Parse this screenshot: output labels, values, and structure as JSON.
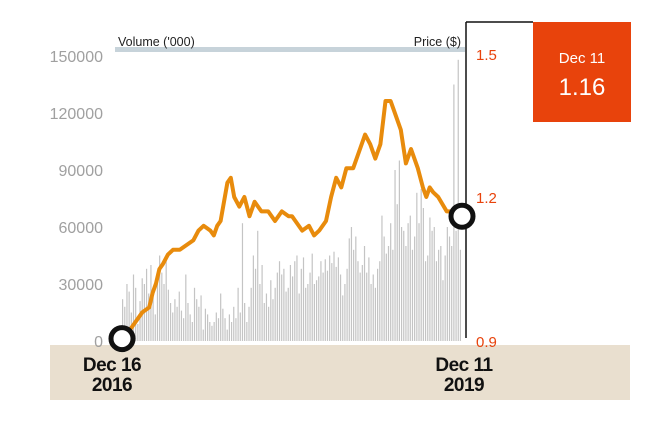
{
  "chart_data": {
    "type": "bar+line",
    "volume_label": "Volume ('000)",
    "price_label": "Price ($)",
    "y_left_ticks": [
      "150000",
      "120000",
      "90000",
      "60000",
      "30000",
      "0"
    ],
    "y_left_range": [
      0,
      150000
    ],
    "y_right_ticks": [
      "1.5",
      "1.2",
      "0.9"
    ],
    "y_right_range": [
      0.9,
      1.5
    ],
    "x_start_label": [
      "Dec 16",
      "2016"
    ],
    "x_end_label": [
      "Dec 11",
      "2019"
    ],
    "callout": {
      "date": "Dec 11",
      "value": "1.16"
    },
    "colors": {
      "price_line": "#e88b0c",
      "volume_bars": "#c4c4c4",
      "accent": "#e8430c",
      "axis_band": "#e9dfcf",
      "right_axis_text": "#e8430c",
      "left_axis_text": "#a0a0a0"
    },
    "price_series": {
      "name": "Price",
      "points": [
        [
          0.0,
          0.905
        ],
        [
          0.02,
          0.92
        ],
        [
          0.04,
          0.94
        ],
        [
          0.06,
          0.96
        ],
        [
          0.08,
          0.97
        ],
        [
          0.09,
          1.0
        ],
        [
          0.1,
          1.02
        ],
        [
          0.11,
          1.05
        ],
        [
          0.12,
          1.06
        ],
        [
          0.135,
          1.08
        ],
        [
          0.15,
          1.09
        ],
        [
          0.17,
          1.09
        ],
        [
          0.19,
          1.1
        ],
        [
          0.21,
          1.11
        ],
        [
          0.225,
          1.13
        ],
        [
          0.24,
          1.14
        ],
        [
          0.26,
          1.13
        ],
        [
          0.27,
          1.12
        ],
        [
          0.28,
          1.14
        ],
        [
          0.29,
          1.15
        ],
        [
          0.31,
          1.23
        ],
        [
          0.32,
          1.24
        ],
        [
          0.33,
          1.2
        ],
        [
          0.345,
          1.18
        ],
        [
          0.36,
          1.2
        ],
        [
          0.375,
          1.16
        ],
        [
          0.39,
          1.19
        ],
        [
          0.41,
          1.17
        ],
        [
          0.43,
          1.17
        ],
        [
          0.45,
          1.15
        ],
        [
          0.47,
          1.17
        ],
        [
          0.49,
          1.16
        ],
        [
          0.5,
          1.16
        ],
        [
          0.51,
          1.15
        ],
        [
          0.53,
          1.13
        ],
        [
          0.55,
          1.14
        ],
        [
          0.565,
          1.12
        ],
        [
          0.58,
          1.13
        ],
        [
          0.6,
          1.15
        ],
        [
          0.615,
          1.2
        ],
        [
          0.63,
          1.24
        ],
        [
          0.645,
          1.22
        ],
        [
          0.66,
          1.26
        ],
        [
          0.68,
          1.26
        ],
        [
          0.7,
          1.3
        ],
        [
          0.715,
          1.33
        ],
        [
          0.73,
          1.31
        ],
        [
          0.745,
          1.28
        ],
        [
          0.76,
          1.31
        ],
        [
          0.775,
          1.4
        ],
        [
          0.79,
          1.4
        ],
        [
          0.8,
          1.38
        ],
        [
          0.82,
          1.34
        ],
        [
          0.835,
          1.27
        ],
        [
          0.85,
          1.3
        ],
        [
          0.87,
          1.26
        ],
        [
          0.885,
          1.22
        ],
        [
          0.895,
          1.2
        ],
        [
          0.905,
          1.22
        ],
        [
          0.915,
          1.21
        ],
        [
          0.93,
          1.2
        ],
        [
          0.955,
          1.17
        ],
        [
          0.975,
          1.17
        ],
        [
          1.0,
          1.16
        ]
      ]
    },
    "volume_series": {
      "name": "Volume",
      "values": [
        22000,
        18000,
        30000,
        26000,
        15000,
        35000,
        28000,
        9000,
        21000,
        33000,
        30000,
        38000,
        25000,
        40000,
        23000,
        14000,
        31000,
        45000,
        36000,
        30000,
        42000,
        27000,
        20000,
        15000,
        22000,
        18000,
        26000,
        16000,
        12000,
        35000,
        20000,
        14000,
        10000,
        28000,
        22000,
        18000,
        24000,
        6000,
        17000,
        14000,
        10000,
        8000,
        10000,
        15000,
        12000,
        25000,
        17000,
        12000,
        6000,
        14000,
        10000,
        18000,
        12000,
        28000,
        15000,
        62000,
        20000,
        10000,
        18000,
        28000,
        45000,
        38000,
        58000,
        30000,
        40000,
        20000,
        25000,
        18000,
        32000,
        22000,
        28000,
        36000,
        42000,
        35000,
        38000,
        26000,
        28000,
        40000,
        34000,
        42000,
        45000,
        25000,
        38000,
        44000,
        28000,
        30000,
        36000,
        46000,
        30000,
        32000,
        34000,
        42000,
        36000,
        43000,
        37000,
        45000,
        41000,
        47000,
        39000,
        44000,
        35000,
        24000,
        30000,
        38000,
        54000,
        60000,
        48000,
        55000,
        42000,
        36000,
        40000,
        50000,
        36000,
        44000,
        30000,
        35000,
        28000,
        38000,
        42000,
        66000,
        55000,
        46000,
        50000,
        62000,
        48000,
        90000,
        72000,
        95000,
        60000,
        58000,
        50000,
        62000,
        66000,
        48000,
        55000,
        78000,
        62000,
        80000,
        70000,
        42000,
        45000,
        65000,
        58000,
        60000,
        42000,
        48000,
        50000,
        32000,
        45000,
        60000,
        55000,
        50000,
        135000,
        58000,
        148000,
        48000
      ]
    }
  }
}
